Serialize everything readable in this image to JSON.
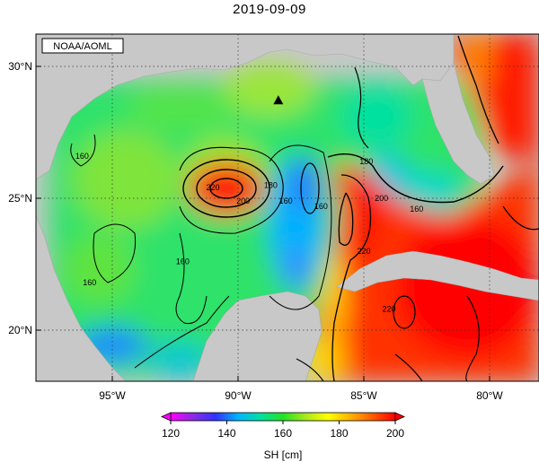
{
  "title": "2019-09-09",
  "source": "NOAA/AOML",
  "lat_ticks": [
    {
      "value": 30,
      "label": "30°N"
    },
    {
      "value": 25,
      "label": "25°N"
    },
    {
      "value": 20,
      "label": "20°N"
    }
  ],
  "lon_ticks": [
    {
      "value": -95,
      "label": "95°W"
    },
    {
      "value": -90,
      "label": "90°W"
    },
    {
      "value": -85,
      "label": "85°W"
    },
    {
      "value": -80,
      "label": "80°W"
    }
  ],
  "colorbar": {
    "label": "SH [cm]",
    "min": 120,
    "max": 200,
    "ticks": [
      120,
      140,
      160,
      180,
      200
    ],
    "colors": [
      "#ff00ff",
      "#8a2be2",
      "#3232ff",
      "#00b4ff",
      "#00e0a0",
      "#22e322",
      "#a8e81e",
      "#ffff00",
      "#ffb000",
      "#ff5a00",
      "#ff0000"
    ]
  },
  "contour_labels": [
    {
      "text": "160",
      "lat": 26.6,
      "lon": -96.2
    },
    {
      "text": "220",
      "lat": 25.4,
      "lon": -91.0
    },
    {
      "text": "200",
      "lat": 24.9,
      "lon": -89.8
    },
    {
      "text": "180",
      "lat": 25.5,
      "lon": -88.7
    },
    {
      "text": "160",
      "lat": 24.9,
      "lon": -88.1
    },
    {
      "text": "160",
      "lat": 24.7,
      "lon": -86.7
    },
    {
      "text": "180",
      "lat": 26.4,
      "lon": -84.9
    },
    {
      "text": "200",
      "lat": 25.0,
      "lon": -84.3
    },
    {
      "text": "220",
      "lat": 23.0,
      "lon": -85.0
    },
    {
      "text": "160",
      "lat": 24.6,
      "lon": -82.9
    },
    {
      "text": "160",
      "lat": 22.6,
      "lon": -92.2
    },
    {
      "text": "160",
      "lat": 21.8,
      "lon": -95.9
    },
    {
      "text": "220",
      "lat": 20.8,
      "lon": -84.0
    }
  ],
  "marker": {
    "type": "triangle",
    "lat": 28.7,
    "lon": -88.4
  },
  "colors": {
    "land": "#c8c8c8",
    "background": "#ffffff"
  }
}
